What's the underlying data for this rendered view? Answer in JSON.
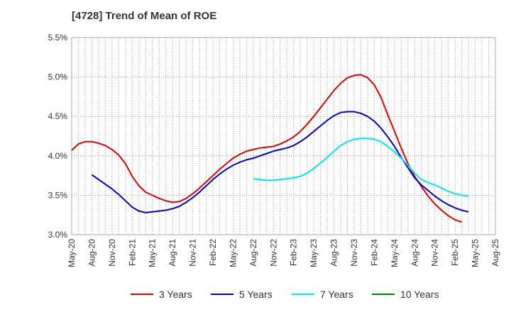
{
  "chart_data": {
    "type": "line",
    "title": "[4728]  Trend of Mean of ROE",
    "xlabel": "",
    "ylabel": "",
    "x": [
      "May-20",
      "Aug-20",
      "Nov-20",
      "Feb-21",
      "May-21",
      "Aug-21",
      "Nov-21",
      "Feb-22",
      "May-22",
      "Aug-22",
      "Nov-22",
      "Feb-23",
      "May-23",
      "Aug-23",
      "Nov-23",
      "Feb-24",
      "May-24",
      "Aug-24",
      "Nov-24",
      "Feb-25",
      "May-25",
      "Aug-25"
    ],
    "yticks": [
      "3.0%",
      "3.5%",
      "4.0%",
      "4.5%",
      "5.0%",
      "5.5%"
    ],
    "ylim": [
      3.0,
      5.5
    ],
    "grid": true,
    "legend_position": "bottom",
    "series": [
      {
        "name": "3 Years",
        "color": "#dd0000",
        "points": [
          [
            0,
            4.07
          ],
          [
            0.333,
            4.15
          ],
          [
            0.667,
            4.18
          ],
          [
            1,
            4.18
          ],
          [
            1.333,
            4.16
          ],
          [
            1.667,
            4.13
          ],
          [
            2,
            4.08
          ],
          [
            2.333,
            4.01
          ],
          [
            2.667,
            3.9
          ],
          [
            3,
            3.74
          ],
          [
            3.333,
            3.62
          ],
          [
            3.667,
            3.54
          ],
          [
            4,
            3.5
          ],
          [
            4.333,
            3.46
          ],
          [
            4.667,
            3.43
          ],
          [
            5,
            3.41
          ],
          [
            5.333,
            3.42
          ],
          [
            5.667,
            3.46
          ],
          [
            6,
            3.52
          ],
          [
            6.333,
            3.59
          ],
          [
            6.667,
            3.67
          ],
          [
            7,
            3.75
          ],
          [
            7.333,
            3.83
          ],
          [
            7.667,
            3.9
          ],
          [
            8,
            3.97
          ],
          [
            8.333,
            4.02
          ],
          [
            8.667,
            4.06
          ],
          [
            9,
            4.08
          ],
          [
            9.333,
            4.1
          ],
          [
            9.667,
            4.11
          ],
          [
            10,
            4.12
          ],
          [
            10.333,
            4.15
          ],
          [
            10.667,
            4.19
          ],
          [
            11,
            4.24
          ],
          [
            11.333,
            4.31
          ],
          [
            11.667,
            4.4
          ],
          [
            12,
            4.5
          ],
          [
            12.333,
            4.61
          ],
          [
            12.667,
            4.72
          ],
          [
            13,
            4.83
          ],
          [
            13.333,
            4.92
          ],
          [
            13.667,
            4.99
          ],
          [
            14,
            5.02
          ],
          [
            14.333,
            5.03
          ],
          [
            14.667,
            4.99
          ],
          [
            15,
            4.9
          ],
          [
            15.333,
            4.74
          ],
          [
            15.667,
            4.52
          ],
          [
            16,
            4.31
          ],
          [
            16.333,
            4.1
          ],
          [
            16.667,
            3.9
          ],
          [
            17,
            3.74
          ],
          [
            17.333,
            3.61
          ],
          [
            17.667,
            3.49
          ],
          [
            18,
            3.39
          ],
          [
            18.333,
            3.31
          ],
          [
            18.667,
            3.24
          ],
          [
            19,
            3.19
          ],
          [
            19.333,
            3.16
          ]
        ]
      },
      {
        "name": "5 Years",
        "color": "#0000cc",
        "points": [
          [
            1,
            3.76
          ],
          [
            1.333,
            3.7
          ],
          [
            1.667,
            3.64
          ],
          [
            2,
            3.58
          ],
          [
            2.333,
            3.51
          ],
          [
            2.667,
            3.43
          ],
          [
            3,
            3.35
          ],
          [
            3.333,
            3.3
          ],
          [
            3.667,
            3.28
          ],
          [
            4,
            3.29
          ],
          [
            4.333,
            3.3
          ],
          [
            4.667,
            3.31
          ],
          [
            5,
            3.33
          ],
          [
            5.333,
            3.36
          ],
          [
            5.667,
            3.41
          ],
          [
            6,
            3.47
          ],
          [
            6.333,
            3.54
          ],
          [
            6.667,
            3.62
          ],
          [
            7,
            3.7
          ],
          [
            7.333,
            3.77
          ],
          [
            7.667,
            3.83
          ],
          [
            8,
            3.88
          ],
          [
            8.333,
            3.92
          ],
          [
            8.667,
            3.95
          ],
          [
            9,
            3.97
          ],
          [
            9.333,
            4.0
          ],
          [
            9.667,
            4.03
          ],
          [
            10,
            4.06
          ],
          [
            10.333,
            4.08
          ],
          [
            10.667,
            4.1
          ],
          [
            11,
            4.13
          ],
          [
            11.333,
            4.18
          ],
          [
            11.667,
            4.24
          ],
          [
            12,
            4.31
          ],
          [
            12.333,
            4.38
          ],
          [
            12.667,
            4.45
          ],
          [
            13,
            4.51
          ],
          [
            13.333,
            4.55
          ],
          [
            13.667,
            4.56
          ],
          [
            14,
            4.56
          ],
          [
            14.333,
            4.54
          ],
          [
            14.667,
            4.5
          ],
          [
            15,
            4.44
          ],
          [
            15.333,
            4.35
          ],
          [
            15.667,
            4.24
          ],
          [
            16,
            4.12
          ],
          [
            16.333,
            3.98
          ],
          [
            16.667,
            3.85
          ],
          [
            17,
            3.72
          ],
          [
            17.333,
            3.63
          ],
          [
            17.667,
            3.56
          ],
          [
            18,
            3.49
          ],
          [
            18.333,
            3.43
          ],
          [
            18.667,
            3.38
          ],
          [
            19,
            3.34
          ],
          [
            19.333,
            3.31
          ],
          [
            19.667,
            3.29
          ]
        ]
      },
      {
        "name": "7 Years",
        "color": "#00e5ee",
        "points": [
          [
            9,
            3.71
          ],
          [
            9.333,
            3.7
          ],
          [
            9.667,
            3.69
          ],
          [
            10,
            3.69
          ],
          [
            10.333,
            3.7
          ],
          [
            10.667,
            3.71
          ],
          [
            11,
            3.72
          ],
          [
            11.333,
            3.74
          ],
          [
            11.667,
            3.78
          ],
          [
            12,
            3.84
          ],
          [
            12.333,
            3.91
          ],
          [
            12.667,
            3.98
          ],
          [
            13,
            4.06
          ],
          [
            13.333,
            4.13
          ],
          [
            13.667,
            4.18
          ],
          [
            14,
            4.21
          ],
          [
            14.333,
            4.22
          ],
          [
            14.667,
            4.22
          ],
          [
            15,
            4.21
          ],
          [
            15.333,
            4.18
          ],
          [
            15.667,
            4.12
          ],
          [
            16,
            4.05
          ],
          [
            16.333,
            3.97
          ],
          [
            16.667,
            3.88
          ],
          [
            17,
            3.78
          ],
          [
            17.333,
            3.7
          ],
          [
            17.667,
            3.66
          ],
          [
            18,
            3.63
          ],
          [
            18.333,
            3.59
          ],
          [
            18.667,
            3.55
          ],
          [
            19,
            3.52
          ],
          [
            19.333,
            3.5
          ],
          [
            19.667,
            3.49
          ]
        ]
      },
      {
        "name": "10 Years",
        "color": "#008000",
        "points": []
      }
    ]
  }
}
